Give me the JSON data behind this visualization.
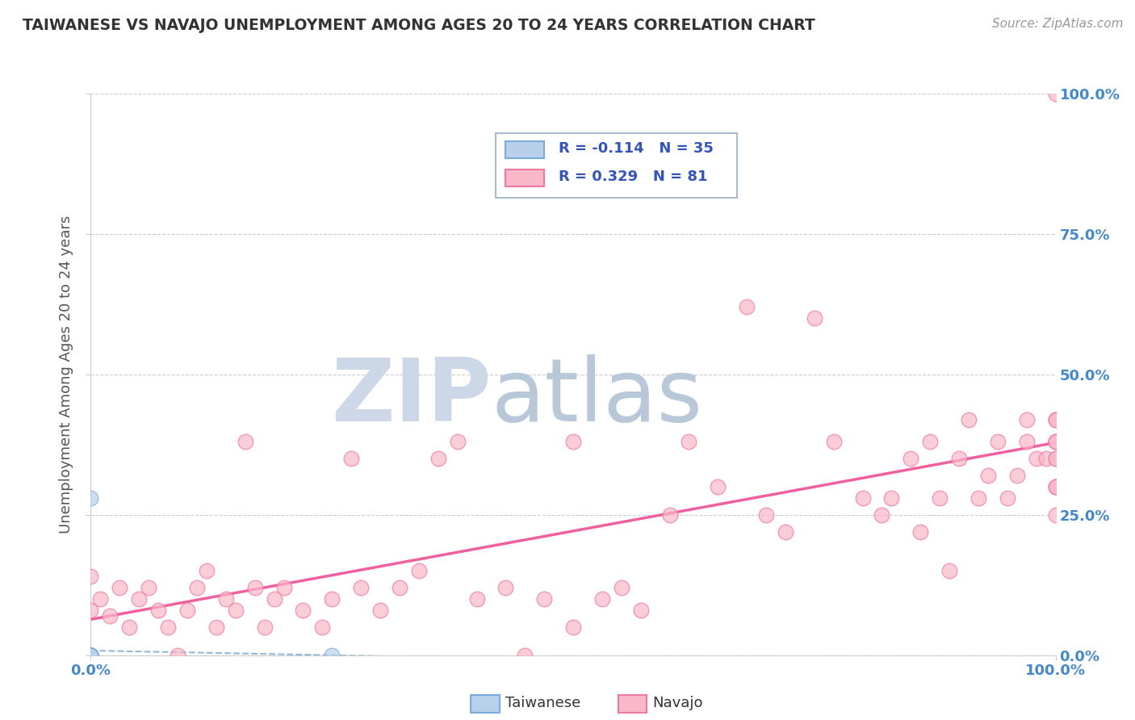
{
  "title": "TAIWANESE VS NAVAJO UNEMPLOYMENT AMONG AGES 20 TO 24 YEARS CORRELATION CHART",
  "source_text": "Source: ZipAtlas.com",
  "ylabel": "Unemployment Among Ages 20 to 24 years",
  "xlim": [
    0,
    1
  ],
  "ylim": [
    0,
    1
  ],
  "xtick_labels": [
    "0.0%",
    "100.0%"
  ],
  "ytick_labels": [
    "0.0%",
    "25.0%",
    "50.0%",
    "75.0%",
    "100.0%"
  ],
  "ytick_positions": [
    0.0,
    0.25,
    0.5,
    0.75,
    1.0
  ],
  "taiwanese_R": -0.114,
  "taiwanese_N": 35,
  "navajo_R": 0.329,
  "navajo_N": 81,
  "taiwanese_color": "#b8d0ea",
  "navajo_color": "#f9b8c8",
  "taiwanese_edge": "#7aabdb",
  "navajo_edge": "#f078a0",
  "trend_navajo_color": "#f060a0",
  "trend_taiwanese_color": "#90b8d8",
  "background_color": "#ffffff",
  "grid_color": "#cccccc",
  "title_color": "#333333",
  "axis_label_color": "#555555",
  "tick_color_blue": "#4488cc",
  "watermark_zip_color": "#ccd8e8",
  "watermark_atlas_color": "#b8c8d8",
  "legend_color": "#3355bb",
  "navajo_x": [
    0.0,
    0.0,
    0.01,
    0.02,
    0.03,
    0.04,
    0.05,
    0.06,
    0.07,
    0.08,
    0.09,
    0.1,
    0.11,
    0.12,
    0.13,
    0.14,
    0.15,
    0.16,
    0.17,
    0.18,
    0.19,
    0.2,
    0.22,
    0.24,
    0.25,
    0.27,
    0.28,
    0.3,
    0.32,
    0.34,
    0.36,
    0.38,
    0.4,
    0.43,
    0.45,
    0.47,
    0.5,
    0.5,
    0.53,
    0.55,
    0.57,
    0.6,
    0.62,
    0.65,
    0.68,
    0.7,
    0.72,
    0.75,
    0.77,
    0.8,
    0.82,
    0.83,
    0.85,
    0.86,
    0.87,
    0.88,
    0.89,
    0.9,
    0.91,
    0.92,
    0.93,
    0.94,
    0.95,
    0.96,
    0.97,
    0.97,
    0.98,
    0.99,
    1.0,
    1.0,
    1.0,
    1.0,
    1.0,
    1.0,
    1.0,
    1.0,
    1.0,
    1.0,
    1.0,
    1.0,
    1.0
  ],
  "navajo_y": [
    0.08,
    0.14,
    0.1,
    0.07,
    0.12,
    0.05,
    0.1,
    0.12,
    0.08,
    0.05,
    0.0,
    0.08,
    0.12,
    0.15,
    0.05,
    0.1,
    0.08,
    0.38,
    0.12,
    0.05,
    0.1,
    0.12,
    0.08,
    0.05,
    0.1,
    0.35,
    0.12,
    0.08,
    0.12,
    0.15,
    0.35,
    0.38,
    0.1,
    0.12,
    0.0,
    0.1,
    0.38,
    0.05,
    0.1,
    0.12,
    0.08,
    0.25,
    0.38,
    0.3,
    0.62,
    0.25,
    0.22,
    0.6,
    0.38,
    0.28,
    0.25,
    0.28,
    0.35,
    0.22,
    0.38,
    0.28,
    0.15,
    0.35,
    0.42,
    0.28,
    0.32,
    0.38,
    0.28,
    0.32,
    0.38,
    0.42,
    0.35,
    0.35,
    0.42,
    0.35,
    0.38,
    0.3,
    0.42,
    0.3,
    0.25,
    0.35,
    0.38,
    0.38,
    0.42,
    0.3,
    1.0
  ],
  "taiwanese_x": [
    0.0,
    0.0,
    0.0,
    0.0,
    0.0,
    0.0,
    0.0,
    0.0,
    0.0,
    0.0,
    0.0,
    0.0,
    0.0,
    0.0,
    0.0,
    0.0,
    0.0,
    0.0,
    0.0,
    0.0,
    0.0,
    0.0,
    0.0,
    0.0,
    0.0,
    0.0,
    0.0,
    0.0,
    0.25,
    0.0,
    0.0,
    0.0,
    0.0,
    0.0,
    0.0
  ],
  "taiwanese_y": [
    0.0,
    0.0,
    0.0,
    0.0,
    0.0,
    0.0,
    0.0,
    0.0,
    0.0,
    0.0,
    0.0,
    0.0,
    0.0,
    0.0,
    0.0,
    0.0,
    0.0,
    0.0,
    0.0,
    0.0,
    0.0,
    0.0,
    0.0,
    0.0,
    0.0,
    0.0,
    0.0,
    0.0,
    0.0,
    0.0,
    0.0,
    0.0,
    0.0,
    0.0,
    0.28
  ]
}
